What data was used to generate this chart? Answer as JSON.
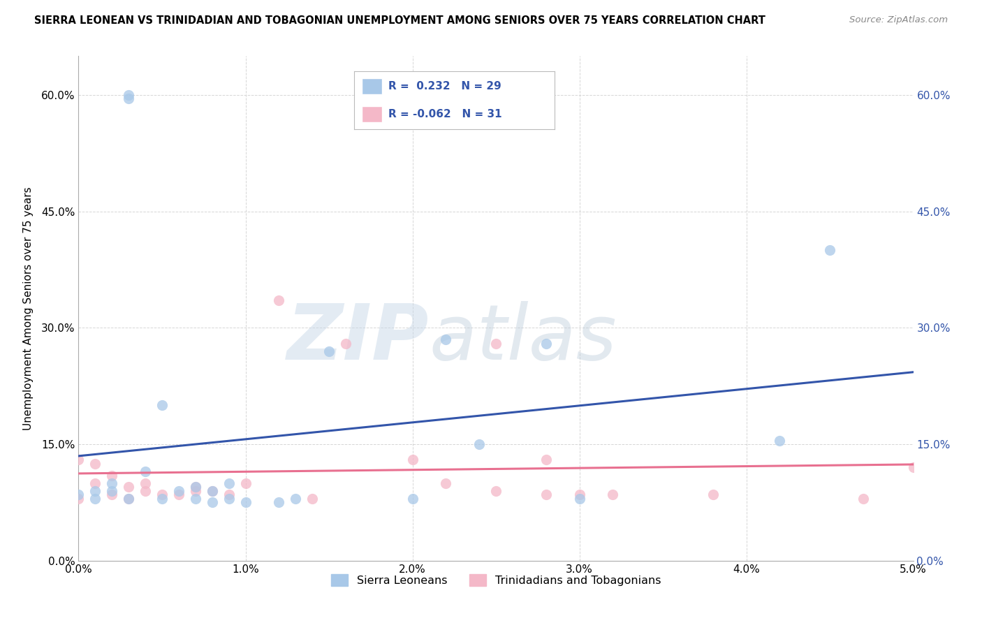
{
  "title": "SIERRA LEONEAN VS TRINIDADIAN AND TOBAGONIAN UNEMPLOYMENT AMONG SENIORS OVER 75 YEARS CORRELATION CHART",
  "source": "Source: ZipAtlas.com",
  "ylabel": "Unemployment Among Seniors over 75 years",
  "xlim": [
    0.0,
    0.05
  ],
  "ylim": [
    0.0,
    0.65
  ],
  "xticks": [
    0.0,
    0.01,
    0.02,
    0.03,
    0.04,
    0.05
  ],
  "xticklabels": [
    "0.0%",
    "1.0%",
    "2.0%",
    "3.0%",
    "4.0%",
    "5.0%"
  ],
  "yticks": [
    0.0,
    0.15,
    0.3,
    0.45,
    0.6
  ],
  "yticklabels": [
    "0.0%",
    "15.0%",
    "30.0%",
    "45.0%",
    "60.0%"
  ],
  "blue_R": 0.232,
  "blue_N": 29,
  "pink_R": -0.062,
  "pink_N": 31,
  "blue_color": "#a8c8e8",
  "pink_color": "#f4b8c8",
  "blue_line_color": "#3355aa",
  "pink_line_color": "#e87090",
  "sierra_x": [
    0.003,
    0.003,
    0.0,
    0.001,
    0.001,
    0.002,
    0.002,
    0.003,
    0.004,
    0.005,
    0.005,
    0.006,
    0.007,
    0.007,
    0.008,
    0.008,
    0.009,
    0.009,
    0.01,
    0.012,
    0.013,
    0.015,
    0.02,
    0.022,
    0.024,
    0.028,
    0.03,
    0.042,
    0.045
  ],
  "sierra_y": [
    0.6,
    0.595,
    0.085,
    0.08,
    0.09,
    0.09,
    0.1,
    0.08,
    0.115,
    0.08,
    0.2,
    0.09,
    0.08,
    0.095,
    0.075,
    0.09,
    0.08,
    0.1,
    0.075,
    0.075,
    0.08,
    0.27,
    0.08,
    0.285,
    0.15,
    0.28,
    0.08,
    0.155,
    0.4
  ],
  "trini_x": [
    0.0,
    0.0,
    0.001,
    0.001,
    0.002,
    0.002,
    0.003,
    0.003,
    0.004,
    0.004,
    0.005,
    0.006,
    0.007,
    0.007,
    0.008,
    0.009,
    0.01,
    0.012,
    0.014,
    0.016,
    0.02,
    0.022,
    0.025,
    0.025,
    0.028,
    0.028,
    0.03,
    0.032,
    0.038,
    0.047,
    0.05
  ],
  "trini_y": [
    0.13,
    0.08,
    0.125,
    0.1,
    0.085,
    0.11,
    0.095,
    0.08,
    0.09,
    0.1,
    0.085,
    0.085,
    0.09,
    0.095,
    0.09,
    0.085,
    0.1,
    0.335,
    0.08,
    0.28,
    0.13,
    0.1,
    0.09,
    0.28,
    0.085,
    0.13,
    0.085,
    0.085,
    0.085,
    0.08,
    0.12
  ],
  "watermark_zip": "ZIP",
  "watermark_atlas": "atlas",
  "bg_color": "#ffffff",
  "grid_color": "#cccccc"
}
